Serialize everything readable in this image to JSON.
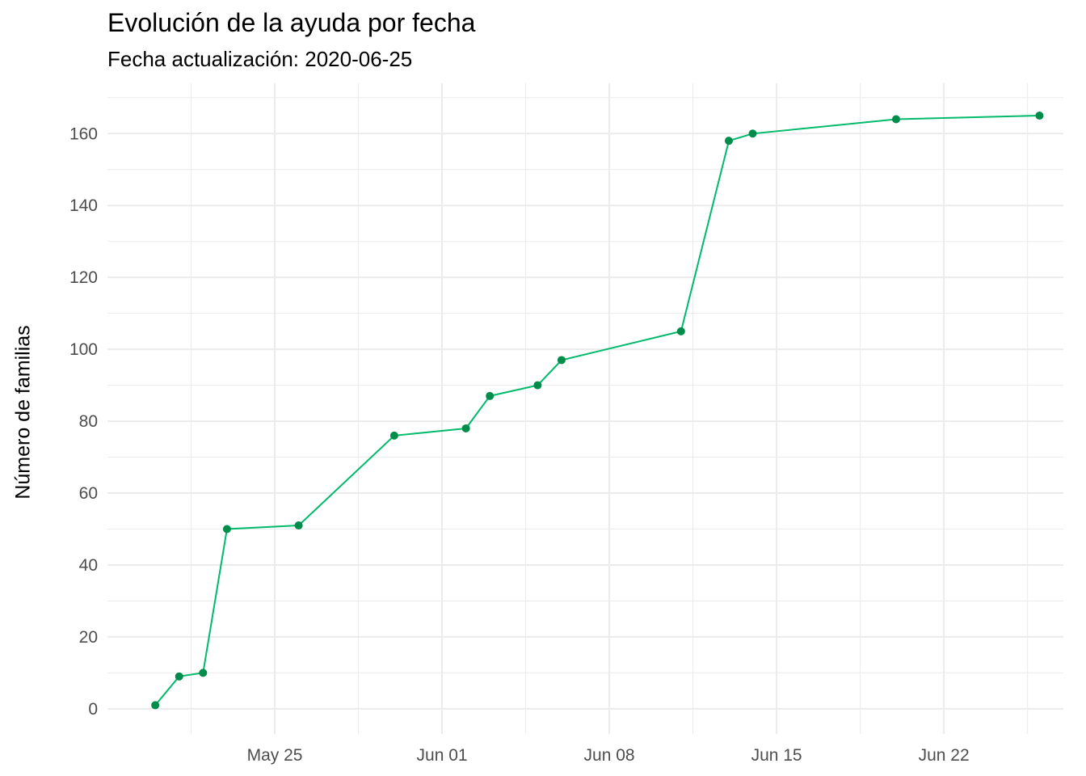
{
  "chart_data": {
    "type": "line",
    "title": "Evolución de la ayuda por fecha",
    "subtitle": "Fecha actualización: 2020-06-25",
    "xlabel": "",
    "ylabel": "Número de familias",
    "x": [
      "2020-05-20",
      "2020-05-21",
      "2020-05-22",
      "2020-05-23",
      "2020-05-26",
      "2020-05-30",
      "2020-06-02",
      "2020-06-03",
      "2020-06-05",
      "2020-06-06",
      "2020-06-11",
      "2020-06-13",
      "2020-06-14",
      "2020-06-20",
      "2020-06-26"
    ],
    "series": [
      {
        "values": [
          1,
          9,
          10,
          50,
          51,
          76,
          78,
          87,
          90,
          97,
          105,
          158,
          160,
          164,
          165
        ]
      }
    ],
    "xlim": [
      "2020-05-18",
      "2020-06-27"
    ],
    "x_ticks": [
      "2020-05-25",
      "2020-06-01",
      "2020-06-08",
      "2020-06-15",
      "2020-06-22"
    ],
    "x_tick_labels": [
      "May 25",
      "Jun 01",
      "Jun 08",
      "Jun 15",
      "Jun 22"
    ],
    "ylim": [
      -7,
      174
    ],
    "y_ticks": [
      0,
      20,
      40,
      60,
      80,
      100,
      120,
      140,
      160
    ],
    "grid": true,
    "colors": {
      "line": "#00BA6B",
      "point": "#008C4A",
      "grid": "#EBEBEB",
      "tick_text": "#4D4D4D"
    }
  }
}
